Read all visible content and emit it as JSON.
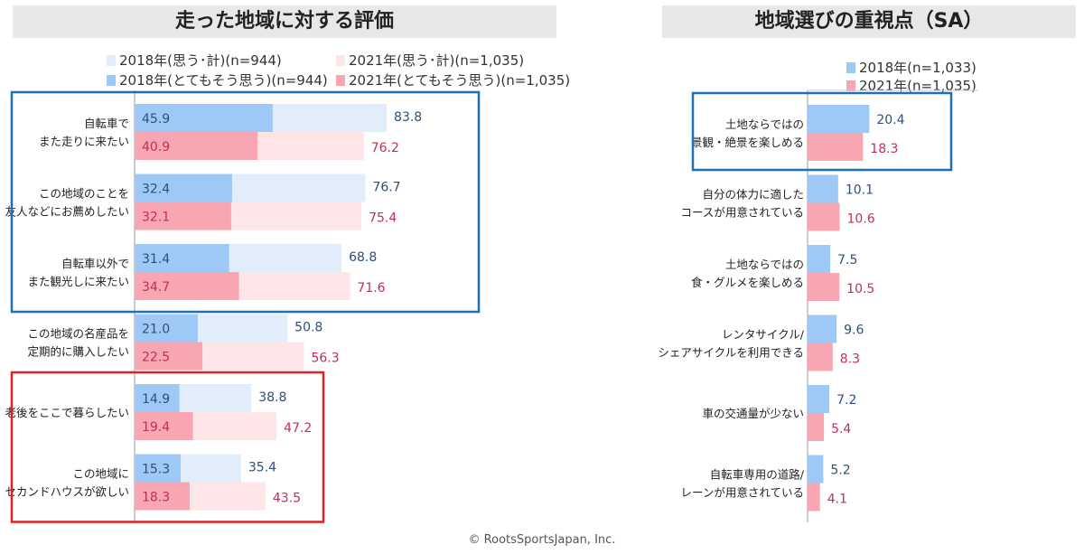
{
  "chart_data": [
    {
      "type": "bar",
      "orientation": "horizontal",
      "title": "走った地域に対する評価",
      "categories": [
        [
          "自転車で",
          "また走りに来たい"
        ],
        [
          "この地域のことを",
          "友人などにお薦めしたい"
        ],
        [
          "自転車以外で",
          "また観光しに来たい"
        ],
        [
          "この地域の名産品を",
          "定期的に購入したい"
        ],
        [
          "老後をここで暮らしたい"
        ],
        [
          "この地域に",
          "セカンドハウスが欲しい"
        ]
      ],
      "series": [
        {
          "name": "2018年(思う･計)(n=944)",
          "color": "#e1edfb",
          "values": [
            83.8,
            76.7,
            68.8,
            50.8,
            38.8,
            35.4
          ]
        },
        {
          "name": "2021年(思う･計)(n=1,035)",
          "color": "#fde5e8",
          "values": [
            76.2,
            75.4,
            71.6,
            56.3,
            47.2,
            43.5
          ]
        },
        {
          "name": "2018年(とてもそう思う)(n=944)",
          "color": "#9ec9f6",
          "values": [
            45.9,
            32.4,
            31.4,
            21.0,
            14.9,
            15.3
          ]
        },
        {
          "name": "2021年(とてもそう思う)(n=1,035)",
          "color": "#f8a6b2",
          "values": [
            40.9,
            32.1,
            34.7,
            22.5,
            19.4,
            18.3
          ]
        }
      ],
      "value_labels_2018": [
        "45.9",
        "32.4",
        "31.4",
        "21.0",
        "14.9",
        "15.3"
      ],
      "value_labels_2021": [
        "40.9",
        "32.1",
        "34.7",
        "22.5",
        "19.4",
        "18.3"
      ],
      "total_labels_2018": [
        "83.8",
        "76.7",
        "68.8",
        "50.8",
        "38.8",
        "35.4"
      ],
      "total_labels_2021": [
        "76.2",
        "75.4",
        "71.6",
        "56.3",
        "47.2",
        "43.5"
      ],
      "xlim": [
        0,
        100
      ],
      "highlight_boxes": [
        {
          "color": "#1f6fb5",
          "categories": [
            0,
            1,
            2
          ]
        },
        {
          "color": "#e02020",
          "categories": [
            4,
            5
          ]
        }
      ],
      "legend_placement": "top"
    },
    {
      "type": "bar",
      "orientation": "horizontal",
      "title": "地域選びの重視点（SA）",
      "categories": [
        [
          "土地ならではの",
          "景観・絶景を楽しめる"
        ],
        [
          "自分の体力に適した",
          "コースが用意されている"
        ],
        [
          "土地ならではの",
          "食・グルメを楽しめる"
        ],
        [
          "レンタサイクル/",
          "シェアサイクルを利用できる"
        ],
        [
          "車の交通量が少ない"
        ],
        [
          "自転車専用の道路/",
          "レーンが用意されている"
        ]
      ],
      "series": [
        {
          "name": "2018年(n=1,033)",
          "color": "#9ec9f6",
          "values": [
            20.4,
            10.1,
            7.5,
            9.6,
            7.2,
            5.2
          ]
        },
        {
          "name": "2021年(n=1,035)",
          "color": "#f8a6b2",
          "values": [
            18.3,
            10.6,
            10.5,
            8.3,
            5.4,
            4.1
          ]
        }
      ],
      "value_labels_2018": [
        "20.4",
        "10.1",
        "7.5",
        "9.6",
        "7.2",
        "5.2"
      ],
      "value_labels_2021": [
        "18.3",
        "10.6",
        "10.5",
        "8.3",
        "5.4",
        "4.1"
      ],
      "highlight_boxes": [
        {
          "color": "#1f6fb5",
          "categories": [
            0
          ]
        }
      ],
      "legend_placement": "top"
    }
  ],
  "footer": "© RootsSportsJapan, Inc.",
  "colors": {
    "label_2018": "#2f4f7a",
    "label_2021": "#c0305a",
    "box_blue": "#1f6fb5",
    "box_red": "#e02020"
  }
}
